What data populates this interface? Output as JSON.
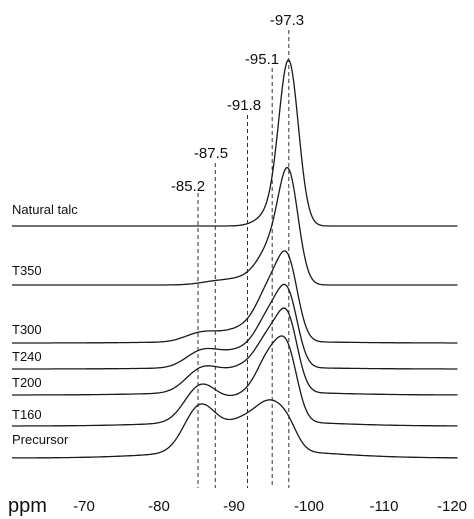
{
  "chart_data": {
    "type": "line",
    "title": "",
    "xlabel": "ppm",
    "ylabel": "",
    "xlim": [
      -66,
      -120
    ],
    "x_ticks": [
      -70,
      -80,
      -90,
      -100,
      -110,
      -120
    ],
    "x_reversed": true,
    "grid": false,
    "legend": "labels at left of each trace",
    "peak_markers": [
      -85.2,
      -87.5,
      -91.8,
      -95.1,
      -97.3
    ],
    "peaks": {
      "positions": [
        -85.2,
        -87.5,
        -91.8,
        -95.1,
        -97.3
      ],
      "widths": [
        2.0,
        2.2,
        2.4,
        1.8,
        1.3
      ]
    },
    "series": [
      {
        "name": "Natural talc",
        "baseline": 0,
        "amplitudes": [
          0.0,
          0.0,
          0.0,
          0.08,
          1.0
        ]
      },
      {
        "name": "T350",
        "baseline": 0,
        "amplitudes": [
          0.0,
          0.02,
          0.04,
          0.22,
          0.62
        ]
      },
      {
        "name": "T300",
        "baseline": 0.01,
        "amplitudes": [
          0.04,
          0.03,
          0.08,
          0.32,
          0.38
        ]
      },
      {
        "name": "T240",
        "baseline": 0.01,
        "amplitudes": [
          0.07,
          0.06,
          0.1,
          0.3,
          0.34
        ]
      },
      {
        "name": "T200",
        "baseline": 0.02,
        "amplitudes": [
          0.1,
          0.08,
          0.14,
          0.3,
          0.34
        ]
      },
      {
        "name": "T160",
        "baseline": 0.03,
        "amplitudes": [
          0.18,
          0.08,
          0.14,
          0.36,
          0.3
        ]
      },
      {
        "name": "Precursor",
        "baseline": 0.05,
        "amplitudes": [
          0.24,
          0.08,
          0.18,
          0.22,
          0.1
        ]
      }
    ]
  },
  "labels": {
    "unit": "ppm",
    "ticks": [
      "-70",
      "-80",
      "-90",
      "-100",
      "-110",
      "-120"
    ],
    "peaks": [
      "-85.2",
      "-87.5",
      "-91.8",
      "-95.1",
      "-97.3"
    ],
    "series": [
      "Natural talc",
      "T350",
      "T300",
      "T240",
      "T200",
      "T160",
      "Precursor"
    ]
  }
}
